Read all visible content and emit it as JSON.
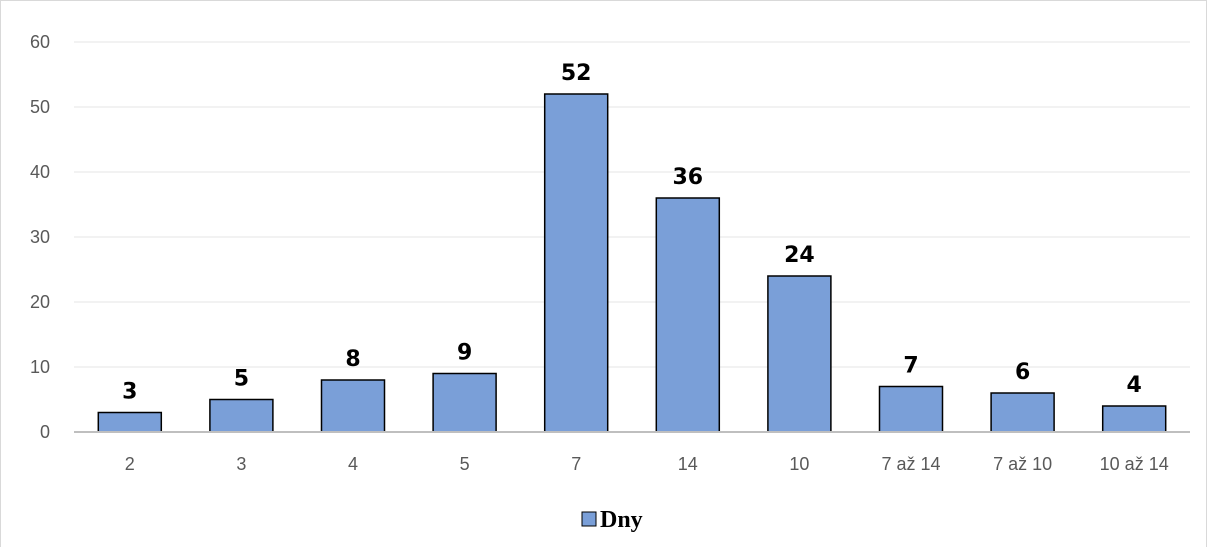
{
  "chart_data": {
    "type": "bar",
    "categories": [
      "2",
      "3",
      "4",
      "5",
      "7",
      "14",
      "10",
      "7 až 14",
      "7 až 10",
      "10 až 14"
    ],
    "series": [
      {
        "name": "Dny",
        "values": [
          3,
          5,
          8,
          9,
          52,
          36,
          24,
          7,
          6,
          4
        ]
      }
    ],
    "ylim": [
      0,
      60
    ],
    "yticks": [
      0,
      10,
      20,
      30,
      40,
      50,
      60
    ],
    "grid": true,
    "legend_position": "bottom",
    "data_labels": true,
    "colors": {
      "bar_fill": "#7a9fd8",
      "bar_stroke": "#000000",
      "grid": "#e6e6e6",
      "axis": "#bfbfbf"
    }
  }
}
